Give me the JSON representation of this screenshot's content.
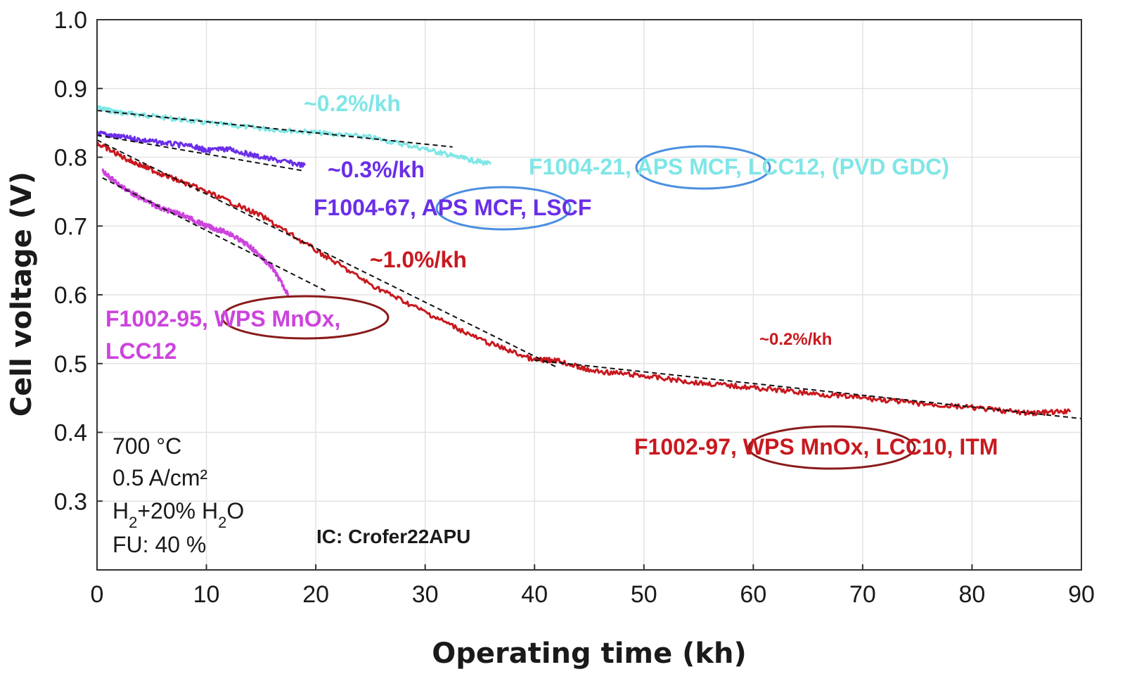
{
  "chart_data": {
    "type": "line",
    "xlabel": "Operating time (kh)",
    "ylabel": "Cell voltage (V)",
    "xlim": [
      0,
      90
    ],
    "ylim": [
      0.2,
      1.0
    ],
    "x_ticks": [
      "0",
      "10",
      "20",
      "30",
      "40",
      "50",
      "60",
      "70",
      "80",
      "90"
    ],
    "y_ticks": [
      "0.3",
      "0.4",
      "0.5",
      "0.6",
      "0.7",
      "0.8",
      "0.9",
      "1.0"
    ],
    "grid": true,
    "series": [
      {
        "name": "F1004-21, APS MCF, LCC12, (PVD GDC)",
        "color": "#7fe6e6",
        "x": [
          0,
          2,
          5,
          10,
          15,
          20,
          25,
          30,
          33,
          36
        ],
        "y": [
          0.872,
          0.865,
          0.86,
          0.85,
          0.842,
          0.836,
          0.829,
          0.812,
          0.8,
          0.79
        ]
      },
      {
        "name": "F1004-67, APS MCF, LSCF",
        "color": "#6a2ee8",
        "x": [
          0,
          2,
          5,
          9,
          10,
          12,
          15,
          19
        ],
        "y": [
          0.835,
          0.83,
          0.823,
          0.815,
          0.81,
          0.812,
          0.8,
          0.788
        ]
      },
      {
        "name": "F1002-95, WPS MnOx, LCC12",
        "color": "#cc44dd",
        "x": [
          0.5,
          2,
          4,
          6,
          8,
          10,
          12,
          14,
          16,
          17.5
        ],
        "y": [
          0.78,
          0.76,
          0.74,
          0.725,
          0.715,
          0.7,
          0.69,
          0.67,
          0.64,
          0.6
        ]
      },
      {
        "name": "F1002-97, WPS MnOx, LCC10, ITM",
        "color": "#c8191f",
        "x": [
          0,
          3,
          6,
          10,
          15,
          20,
          25,
          30,
          35,
          40,
          42,
          45,
          50,
          55,
          60,
          65,
          70,
          75,
          80,
          85,
          89
        ],
        "y": [
          0.82,
          0.795,
          0.775,
          0.75,
          0.715,
          0.665,
          0.615,
          0.575,
          0.535,
          0.505,
          0.505,
          0.49,
          0.482,
          0.472,
          0.465,
          0.457,
          0.45,
          0.442,
          0.436,
          0.428,
          0.43
        ]
      }
    ],
    "trend_lines": [
      {
        "label": "~0.2%/kh",
        "x": [
          0,
          32.5
        ],
        "y": [
          0.868,
          0.815
        ]
      },
      {
        "label": "~0.3%/kh",
        "x": [
          0,
          19
        ],
        "y": [
          0.832,
          0.78
        ]
      },
      {
        "label": "~1.0%/kh",
        "x": [
          0,
          42
        ],
        "y": [
          0.825,
          0.495
        ]
      },
      {
        "label": "~0.2%/kh",
        "x": [
          40,
          90
        ],
        "y": [
          0.505,
          0.42
        ]
      },
      {
        "label": "",
        "x": [
          0.5,
          21
        ],
        "y": [
          0.77,
          0.605
        ]
      }
    ],
    "annotations": {
      "rate_cyan": "~0.2%/kh",
      "rate_purple": "~0.3%/kh",
      "rate_red_1": "~1.0%/kh",
      "rate_red_2": "~0.2%/kh",
      "label_cyan": "F1004-21, APS MCF, LCC12, (PVD GDC)",
      "label_purple": "F1004-67, APS MCF, LSCF",
      "label_magenta_line1": "F1002-95, WPS MnOx,",
      "label_magenta_line2": "LCC12",
      "label_red": "F1002-97, WPS MnOx, LCC10, ITM",
      "conditions": [
        "700 °C",
        "0.5 A/cm²",
        "H2+20% H2O",
        "FU: 40 %"
      ],
      "interconnect": "IC: Crofer22APU"
    }
  },
  "colors": {
    "cyan": "#7fe6e6",
    "purple": "#6a2ee8",
    "magenta": "#cc44dd",
    "red": "#c8191f",
    "ellipse_blue": "#4a8fe0",
    "ellipse_dark_red": "#8b1a1a"
  }
}
